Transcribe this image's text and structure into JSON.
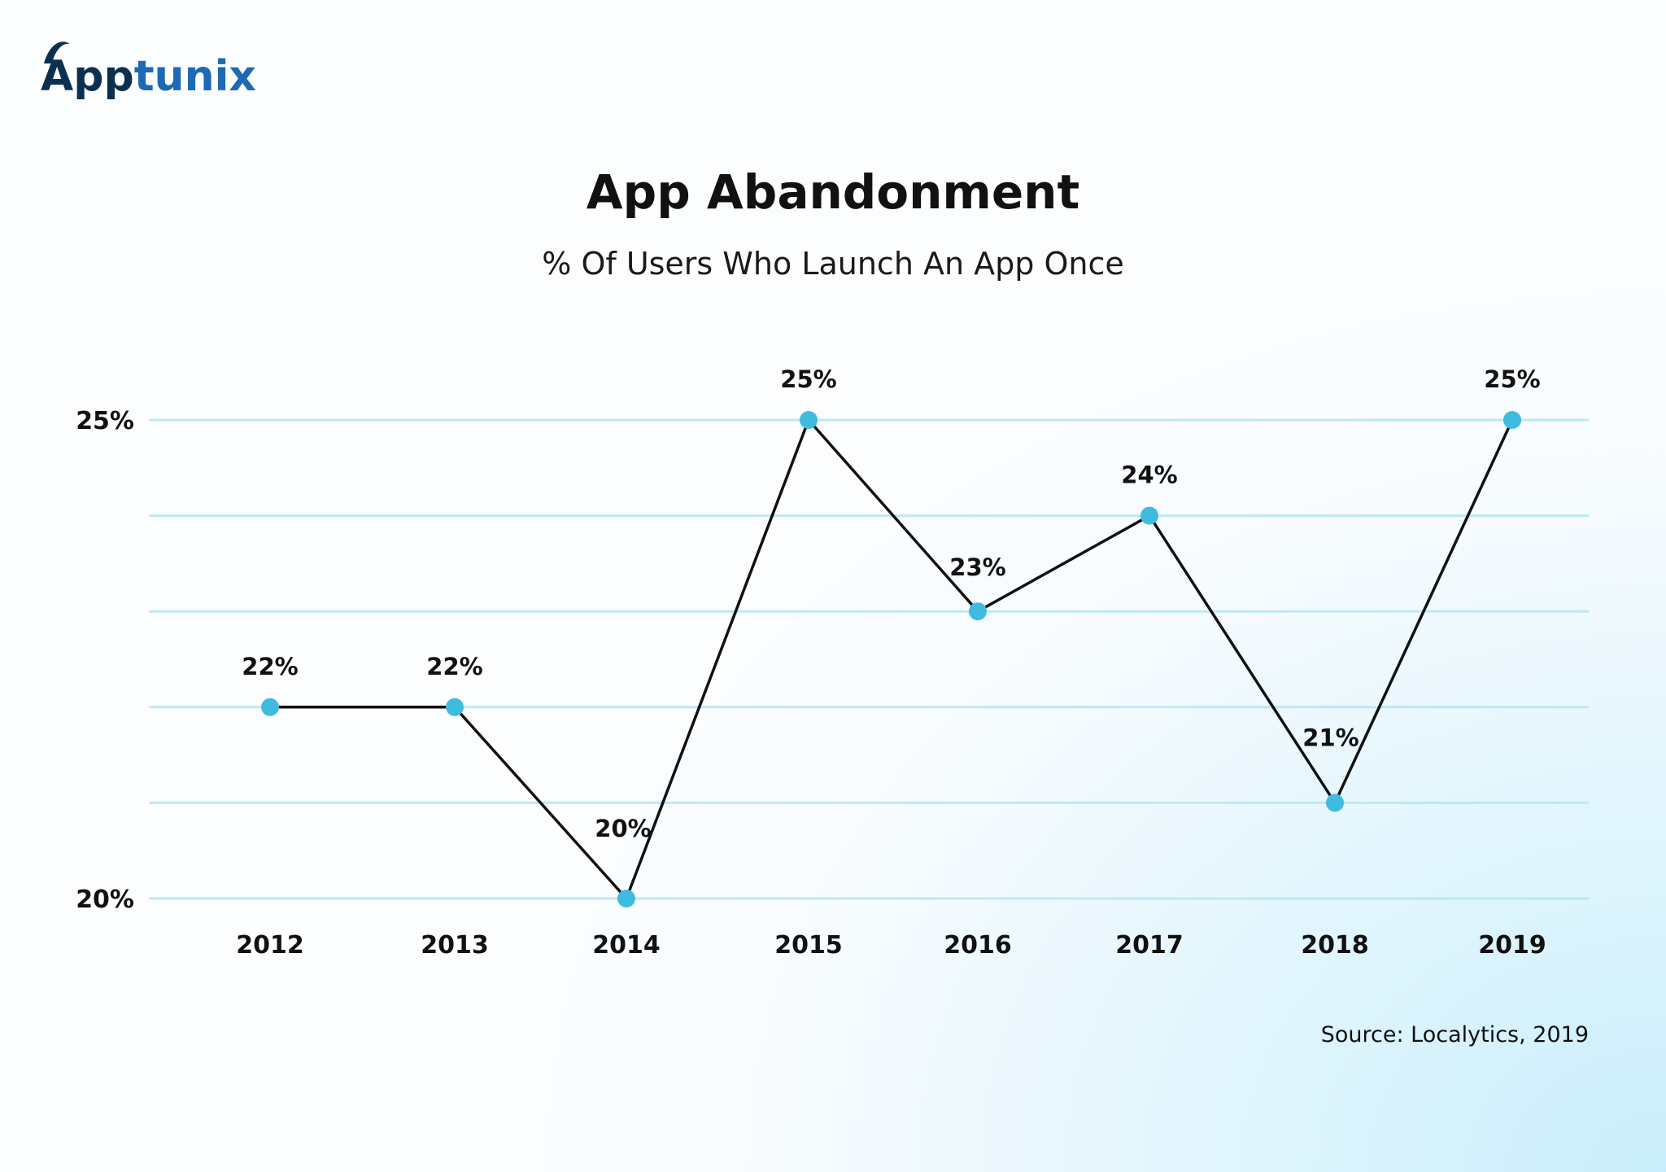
{
  "brand": {
    "name_part1": "App",
    "name_part2": "tunix",
    "colors": {
      "dark": "#0b2f4f",
      "accent": "#1c6ab3"
    }
  },
  "colors": {
    "line": "#111111",
    "marker": "#3fbbe0",
    "grid": "#bfe8f2",
    "text": "#111111"
  },
  "source": "Source: Localytics, 2019",
  "chart_data": {
    "type": "line",
    "title": "App Abandonment",
    "subtitle": "% Of Users Who Launch An App Once",
    "categories": [
      "2012",
      "2013",
      "2014",
      "2015",
      "2016",
      "2017",
      "2018",
      "2019"
    ],
    "series": [
      {
        "values": [
          22,
          22,
          20,
          25,
          23,
          24,
          21,
          25
        ],
        "labels": [
          "22%",
          "22%",
          "20%",
          "25%",
          "23%",
          "24%",
          "21%",
          "25%"
        ]
      }
    ],
    "ylim": [
      20,
      25
    ],
    "yticks": [
      20,
      25
    ],
    "ytick_labels": [
      "20%",
      "25%"
    ],
    "grid": true,
    "legend": false,
    "xlabel": "",
    "ylabel": ""
  }
}
